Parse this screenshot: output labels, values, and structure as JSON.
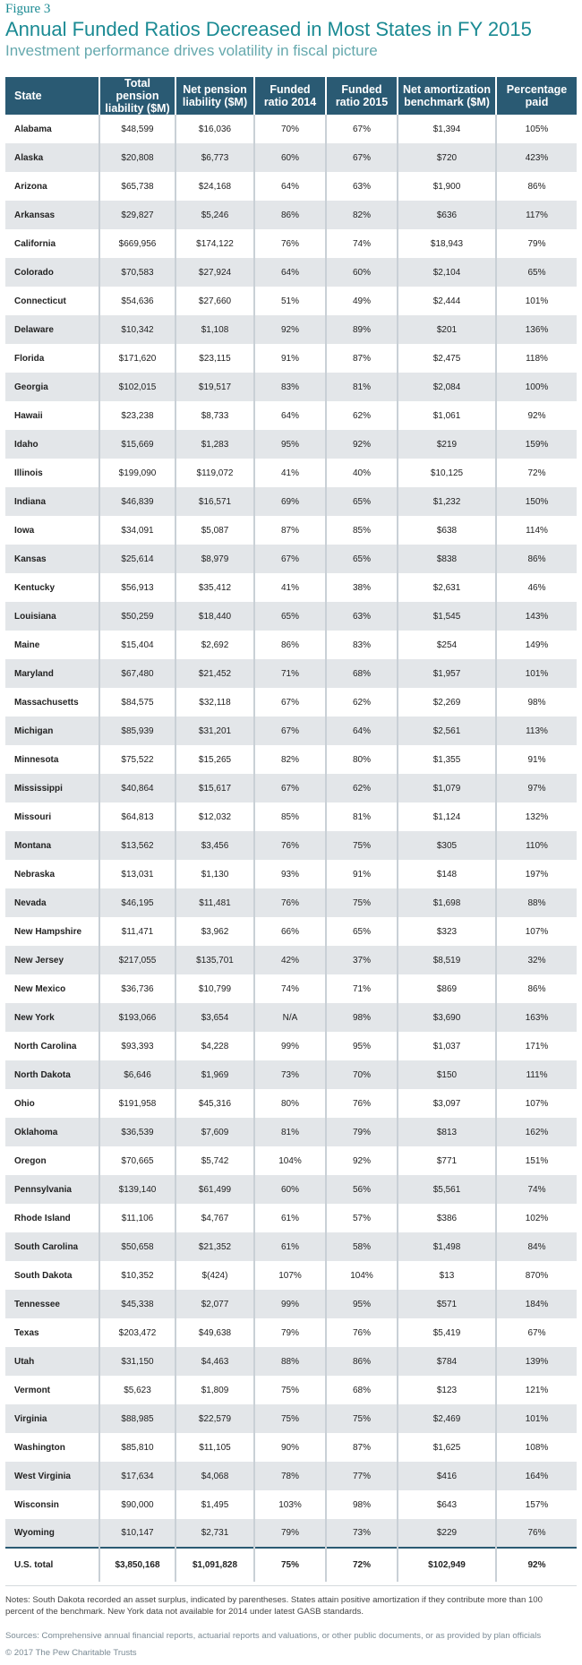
{
  "figure_label": "Figure 3",
  "title": "Annual Funded Ratios Decreased in Most States in FY 2015",
  "subtitle": "Investment performance drives volatility in fiscal picture",
  "columns": [
    "State",
    "Total pension liability ($M)",
    "Net pension liability ($M)",
    "Funded ratio 2014",
    "Funded ratio 2015",
    "Net amortization benchmark ($M)",
    "Percentage paid"
  ],
  "rows": [
    [
      "Alabama",
      "$48,599",
      "$16,036",
      "70%",
      "67%",
      "$1,394",
      "105%"
    ],
    [
      "Alaska",
      "$20,808",
      "$6,773",
      "60%",
      "67%",
      "$720",
      "423%"
    ],
    [
      "Arizona",
      "$65,738",
      "$24,168",
      "64%",
      "63%",
      "$1,900",
      "86%"
    ],
    [
      "Arkansas",
      "$29,827",
      "$5,246",
      "86%",
      "82%",
      "$636",
      "117%"
    ],
    [
      "California",
      "$669,956",
      "$174,122",
      "76%",
      "74%",
      "$18,943",
      "79%"
    ],
    [
      "Colorado",
      "$70,583",
      "$27,924",
      "64%",
      "60%",
      "$2,104",
      "65%"
    ],
    [
      "Connecticut",
      "$54,636",
      "$27,660",
      "51%",
      "49%",
      "$2,444",
      "101%"
    ],
    [
      "Delaware",
      "$10,342",
      "$1,108",
      "92%",
      "89%",
      "$201",
      "136%"
    ],
    [
      "Florida",
      "$171,620",
      "$23,115",
      "91%",
      "87%",
      "$2,475",
      "118%"
    ],
    [
      "Georgia",
      "$102,015",
      "$19,517",
      "83%",
      "81%",
      "$2,084",
      "100%"
    ],
    [
      "Hawaii",
      "$23,238",
      "$8,733",
      "64%",
      "62%",
      "$1,061",
      "92%"
    ],
    [
      "Idaho",
      "$15,669",
      "$1,283",
      "95%",
      "92%",
      "$219",
      "159%"
    ],
    [
      "Illinois",
      "$199,090",
      "$119,072",
      "41%",
      "40%",
      "$10,125",
      "72%"
    ],
    [
      "Indiana",
      "$46,839",
      "$16,571",
      "69%",
      "65%",
      "$1,232",
      "150%"
    ],
    [
      "Iowa",
      "$34,091",
      "$5,087",
      "87%",
      "85%",
      "$638",
      "114%"
    ],
    [
      "Kansas",
      "$25,614",
      "$8,979",
      "67%",
      "65%",
      "$838",
      "86%"
    ],
    [
      "Kentucky",
      "$56,913",
      "$35,412",
      "41%",
      "38%",
      "$2,631",
      "46%"
    ],
    [
      "Louisiana",
      "$50,259",
      "$18,440",
      "65%",
      "63%",
      "$1,545",
      "143%"
    ],
    [
      "Maine",
      "$15,404",
      "$2,692",
      "86%",
      "83%",
      "$254",
      "149%"
    ],
    [
      "Maryland",
      "$67,480",
      "$21,452",
      "71%",
      "68%",
      "$1,957",
      "101%"
    ],
    [
      "Massachusetts",
      "$84,575",
      "$32,118",
      "67%",
      "62%",
      "$2,269",
      "98%"
    ],
    [
      "Michigan",
      "$85,939",
      "$31,201",
      "67%",
      "64%",
      "$2,561",
      "113%"
    ],
    [
      "Minnesota",
      "$75,522",
      "$15,265",
      "82%",
      "80%",
      "$1,355",
      "91%"
    ],
    [
      "Mississippi",
      "$40,864",
      "$15,617",
      "67%",
      "62%",
      "$1,079",
      "97%"
    ],
    [
      "Missouri",
      "$64,813",
      "$12,032",
      "85%",
      "81%",
      "$1,124",
      "132%"
    ],
    [
      "Montana",
      "$13,562",
      "$3,456",
      "76%",
      "75%",
      "$305",
      "110%"
    ],
    [
      "Nebraska",
      "$13,031",
      "$1,130",
      "93%",
      "91%",
      "$148",
      "197%"
    ],
    [
      "Nevada",
      "$46,195",
      "$11,481",
      "76%",
      "75%",
      "$1,698",
      "88%"
    ],
    [
      "New Hampshire",
      "$11,471",
      "$3,962",
      "66%",
      "65%",
      "$323",
      "107%"
    ],
    [
      "New Jersey",
      "$217,055",
      "$135,701",
      "42%",
      "37%",
      "$8,519",
      "32%"
    ],
    [
      "New Mexico",
      "$36,736",
      "$10,799",
      "74%",
      "71%",
      "$869",
      "86%"
    ],
    [
      "New York",
      "$193,066",
      "$3,654",
      "N/A",
      "98%",
      "$3,690",
      "163%"
    ],
    [
      "North Carolina",
      "$93,393",
      "$4,228",
      "99%",
      "95%",
      "$1,037",
      "171%"
    ],
    [
      "North Dakota",
      "$6,646",
      "$1,969",
      "73%",
      "70%",
      "$150",
      "111%"
    ],
    [
      "Ohio",
      "$191,958",
      "$45,316",
      "80%",
      "76%",
      "$3,097",
      "107%"
    ],
    [
      "Oklahoma",
      "$36,539",
      "$7,609",
      "81%",
      "79%",
      "$813",
      "162%"
    ],
    [
      "Oregon",
      "$70,665",
      "$5,742",
      "104%",
      "92%",
      "$771",
      "151%"
    ],
    [
      "Pennsylvania",
      "$139,140",
      "$61,499",
      "60%",
      "56%",
      "$5,561",
      "74%"
    ],
    [
      "Rhode Island",
      "$11,106",
      "$4,767",
      "61%",
      "57%",
      "$386",
      "102%"
    ],
    [
      "South Carolina",
      "$50,658",
      "$21,352",
      "61%",
      "58%",
      "$1,498",
      "84%"
    ],
    [
      "South Dakota",
      "$10,352",
      "$(424)",
      "107%",
      "104%",
      "$13",
      "870%"
    ],
    [
      "Tennessee",
      "$45,338",
      "$2,077",
      "99%",
      "95%",
      "$571",
      "184%"
    ],
    [
      "Texas",
      "$203,472",
      "$49,638",
      "79%",
      "76%",
      "$5,419",
      "67%"
    ],
    [
      "Utah",
      "$31,150",
      "$4,463",
      "88%",
      "86%",
      "$784",
      "139%"
    ],
    [
      "Vermont",
      "$5,623",
      "$1,809",
      "75%",
      "68%",
      "$123",
      "121%"
    ],
    [
      "Virginia",
      "$88,985",
      "$22,579",
      "75%",
      "75%",
      "$2,469",
      "101%"
    ],
    [
      "Washington",
      "$85,810",
      "$11,105",
      "90%",
      "87%",
      "$1,625",
      "108%"
    ],
    [
      "West Virginia",
      "$17,634",
      "$4,068",
      "78%",
      "77%",
      "$416",
      "164%"
    ],
    [
      "Wisconsin",
      "$90,000",
      "$1,495",
      "103%",
      "98%",
      "$643",
      "157%"
    ],
    [
      "Wyoming",
      "$10,147",
      "$2,731",
      "79%",
      "73%",
      "$229",
      "76%"
    ]
  ],
  "total": [
    "U.S. total",
    "$3,850,168",
    "$1,091,828",
    "75%",
    "72%",
    "$102,949",
    "92%"
  ],
  "notes": "Notes: South Dakota recorded an asset surplus, indicated by parentheses. States attain positive amortization if they contribute more than 100 percent of the benchmark. New York data not available for 2014 under latest GASB standards.",
  "sources": "Sources: Comprehensive annual financial reports, actuarial reports and valuations, or other public documents, or as provided by plan officials",
  "copyright": "© 2017 The Pew Charitable Trusts",
  "colors": {
    "accent": "#1a8a93",
    "header": "#2a5a73",
    "stripe": "#e3e6e9"
  }
}
